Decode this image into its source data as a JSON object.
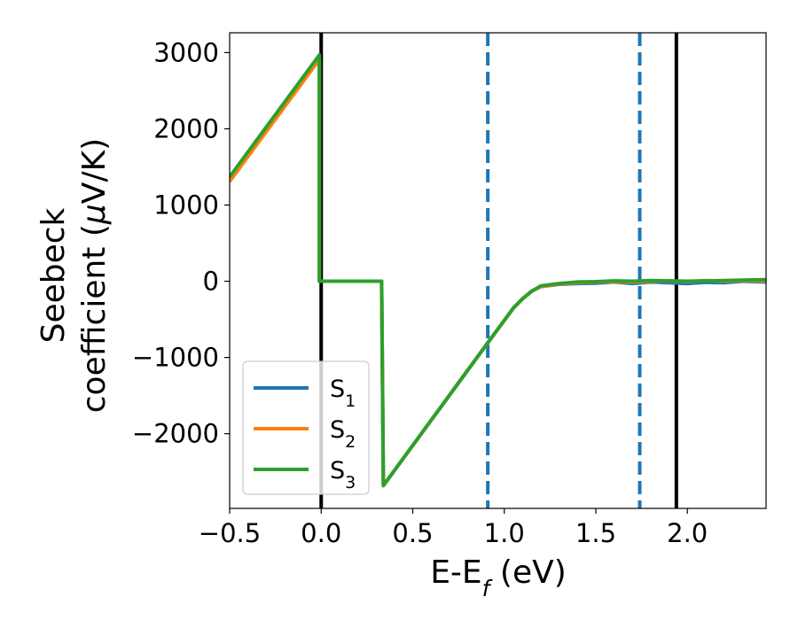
{
  "chart_data": {
    "type": "line",
    "xlabel": {
      "main": "E-E",
      "sub": "f",
      "suffix": " (eV)"
    },
    "ylabel": {
      "line1": "Seebeck",
      "line2_text": "coefficient  (",
      "line2_mu": "μ",
      "line2_end": "V/K)"
    },
    "xlim": [
      -0.5,
      2.43
    ],
    "ylim": [
      -2980,
      3260
    ],
    "xticks": [
      -0.5,
      0.0,
      0.5,
      1.0,
      1.5,
      2.0
    ],
    "xtick_labels": [
      "−0.5",
      "0.0",
      "0.5",
      "1.0",
      "1.5",
      "2.0"
    ],
    "yticks": [
      -2000,
      -1000,
      0,
      1000,
      2000,
      3000
    ],
    "ytick_labels": [
      "−2000",
      "−1000",
      "0",
      "1000",
      "2000",
      "3000"
    ],
    "grid": false,
    "legend_position": "lower-left",
    "vlines": [
      {
        "x": 0.0,
        "style": "solid",
        "color": "#000000"
      },
      {
        "x": 0.91,
        "style": "dashed",
        "color": "#1f77b4"
      },
      {
        "x": 1.74,
        "style": "dashed",
        "color": "#1f77b4"
      },
      {
        "x": 1.94,
        "style": "solid",
        "color": "#000000"
      }
    ],
    "series": [
      {
        "name": "S",
        "sub": "1",
        "color": "#1f77b4",
        "x": [
          -0.5,
          -0.01,
          -0.01,
          0.0,
          0.33,
          0.34,
          0.9,
          1.05,
          1.1,
          1.15,
          1.2,
          1.3,
          1.4,
          1.5,
          1.6,
          1.7,
          1.8,
          1.9,
          2.0,
          2.1,
          2.2,
          2.3,
          2.43
        ],
        "y": [
          1320,
          2930,
          0,
          0,
          0,
          -2680,
          -840,
          -350,
          -230,
          -130,
          -70,
          -40,
          -30,
          -25,
          -10,
          -30,
          -10,
          -20,
          -30,
          -15,
          -20,
          0,
          -10
        ]
      },
      {
        "name": "S",
        "sub": "2",
        "color": "#ff7f0e",
        "x": [
          -0.5,
          -0.01,
          -0.01,
          0.0,
          0.33,
          0.34,
          0.9,
          1.05,
          1.1,
          1.15,
          1.2,
          1.3,
          1.4,
          1.5,
          1.6,
          1.7,
          1.8,
          1.9,
          2.0,
          2.1,
          2.2,
          2.3,
          2.43
        ],
        "y": [
          1310,
          2910,
          0,
          0,
          0,
          -2680,
          -840,
          -350,
          -230,
          -130,
          -70,
          -35,
          -20,
          -10,
          -5,
          -10,
          0,
          5,
          -5,
          10,
          0,
          10,
          5
        ]
      },
      {
        "name": "S",
        "sub": "3",
        "color": "#2ca02c",
        "x": [
          -0.5,
          -0.01,
          -0.01,
          0.0,
          0.33,
          0.34,
          0.9,
          1.05,
          1.1,
          1.15,
          1.2,
          1.3,
          1.4,
          1.5,
          1.6,
          1.7,
          1.8,
          1.9,
          2.0,
          2.1,
          2.2,
          2.3,
          2.43
        ],
        "y": [
          1370,
          2970,
          0,
          0,
          0,
          -2680,
          -840,
          -350,
          -230,
          -130,
          -60,
          -30,
          -10,
          -5,
          5,
          0,
          10,
          5,
          0,
          5,
          10,
          15,
          20
        ]
      }
    ]
  }
}
